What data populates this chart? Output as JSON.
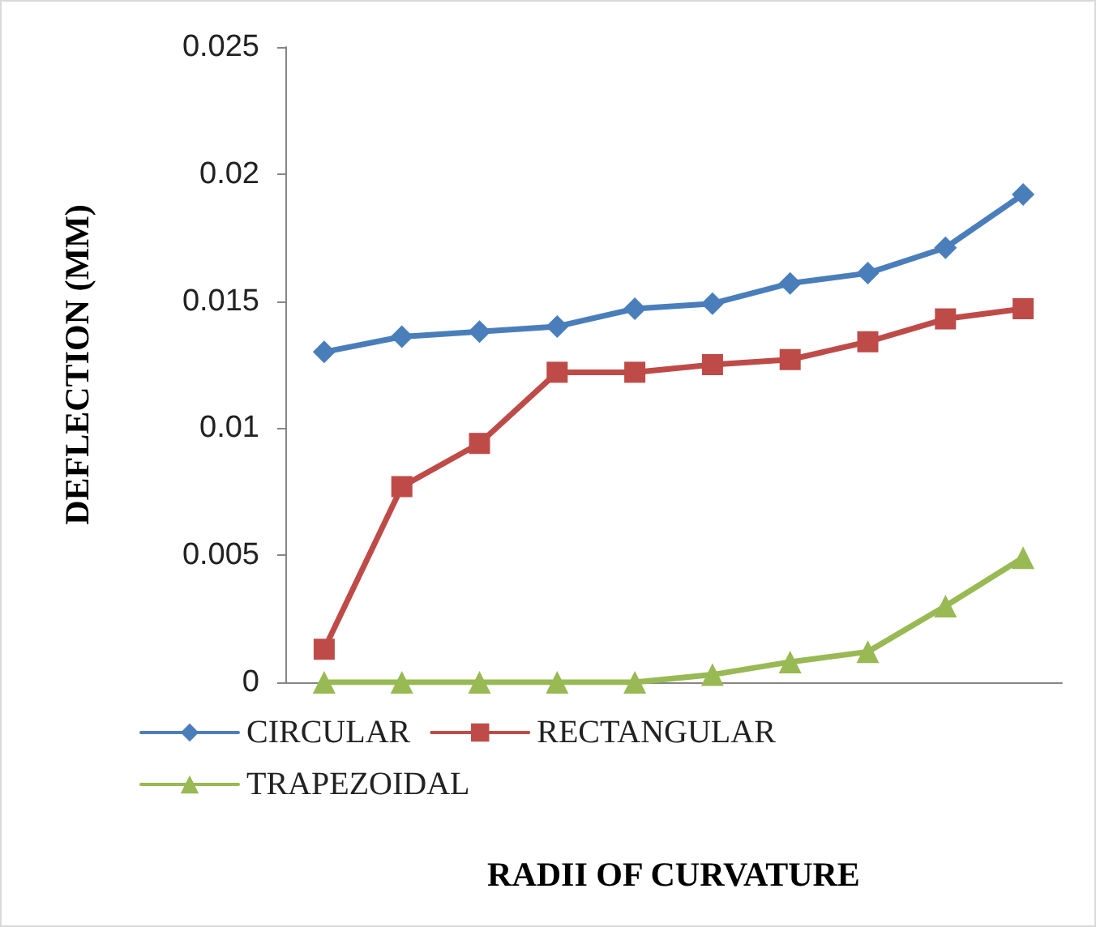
{
  "chart_data": {
    "type": "line",
    "xlabel": "RADII OF CURVATURE",
    "ylabel": "DEFLECTION (MM)",
    "categories": [
      null,
      null,
      null,
      null,
      null,
      null,
      null,
      null,
      null,
      null
    ],
    "series": [
      {
        "name": "CIRCULAR",
        "color": "#4a7ebb",
        "marker": "diamond",
        "values": [
          0.013,
          0.0136,
          0.0138,
          0.014,
          0.0147,
          0.0149,
          0.0157,
          0.0161,
          0.0171,
          0.0192
        ]
      },
      {
        "name": "RECTANGULAR",
        "color": "#be4b48",
        "marker": "square",
        "values": [
          0.0013,
          0.0077,
          0.0094,
          0.0122,
          0.0122,
          0.0125,
          0.0127,
          0.0134,
          0.0143,
          0.0147
        ]
      },
      {
        "name": "TRAPEZOIDAL",
        "color": "#98b954",
        "marker": "triangle",
        "values": [
          0,
          0,
          0,
          0,
          0,
          0.0003,
          0.0008,
          0.0012,
          0.003,
          0.0049
        ]
      }
    ],
    "ylim": [
      0,
      0.025
    ],
    "yticks": [
      0,
      0.005,
      0.01,
      0.015,
      0.02,
      0.025
    ],
    "grid": false,
    "legend": "bottom",
    "line_style": "solid"
  }
}
